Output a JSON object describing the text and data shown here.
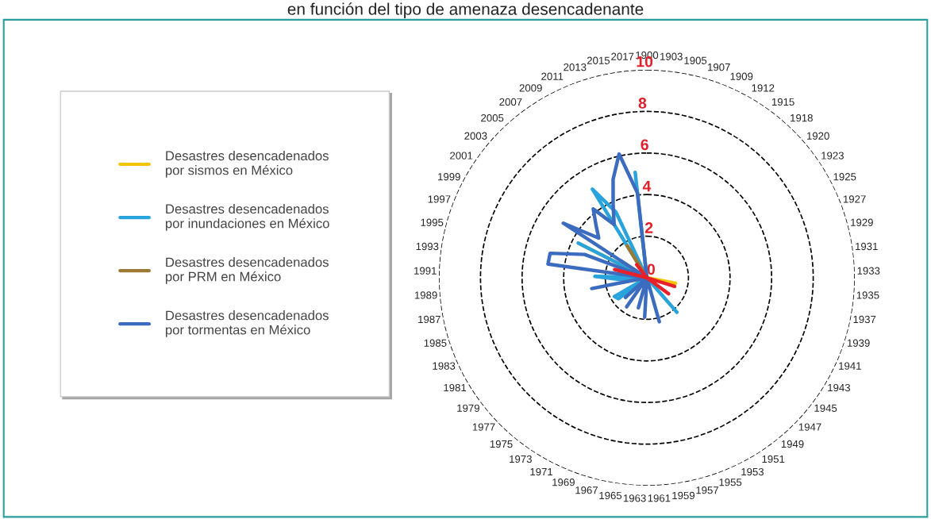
{
  "chart_data": {
    "type": "radar",
    "title": "en función del tipo de amenaza desencadenante",
    "categories": [
      "1900",
      "1903",
      "1905",
      "1907",
      "1909",
      "1912",
      "1915",
      "1918",
      "1920",
      "1923",
      "1925",
      "1927",
      "1929",
      "1931",
      "1933",
      "1935",
      "1937",
      "1939",
      "1941",
      "1943",
      "1945",
      "1947",
      "1949",
      "1951",
      "1953",
      "1955",
      "1957",
      "1959",
      "1961",
      "1963",
      "1965",
      "1967",
      "1969",
      "1971",
      "1973",
      "1975",
      "1977",
      "1979",
      "1981",
      "1983",
      "1985",
      "1987",
      "1989",
      "1991",
      "1993",
      "1995",
      "1997",
      "1999",
      "2001",
      "2003",
      "2005",
      "2007",
      "2009",
      "2011",
      "2013",
      "2015",
      "2017"
    ],
    "series": [
      {
        "name": "Desastres desencadenados\npor sismos en México",
        "color": "#f2c500",
        "values": [
          0,
          0,
          0,
          0,
          0,
          0,
          0,
          0,
          0,
          0,
          0,
          0,
          0,
          0,
          0,
          0,
          1.4,
          0,
          0,
          0,
          0,
          0,
          0,
          0,
          0,
          0,
          0,
          0,
          0,
          0,
          0,
          0,
          0,
          0,
          0,
          0,
          0,
          0,
          0,
          0,
          0,
          0,
          0,
          0,
          0,
          0,
          0,
          3.6,
          0,
          0,
          0,
          0,
          0,
          0,
          0,
          0,
          2.0
        ]
      },
      {
        "name": "Desastres desencadenados\npor inundaciones en México",
        "color": "#29a3dc",
        "values": [
          0,
          0,
          0,
          0,
          0,
          0,
          0,
          0,
          0,
          0,
          0,
          0,
          0,
          0,
          0,
          0,
          0,
          0,
          0,
          0,
          0,
          0,
          2.2,
          0,
          0,
          0,
          0,
          0,
          0,
          0,
          0,
          0,
          0,
          0,
          0,
          0,
          0,
          1.7,
          1.8,
          0,
          0,
          0,
          1.2,
          2.5,
          0,
          0,
          0,
          3.7,
          0,
          0,
          0,
          0,
          5.0,
          3.5,
          0,
          0,
          5.1
        ]
      },
      {
        "name": "Desastres desencadenados\npor PRM en México",
        "color": "#9c7a34",
        "values": [
          0,
          0,
          0,
          0,
          0,
          0,
          0,
          0,
          0,
          0,
          0,
          0,
          0,
          0,
          0,
          0,
          0,
          0,
          0,
          0,
          0,
          0,
          0,
          0,
          0,
          0,
          0,
          0,
          0,
          0,
          0,
          0,
          0,
          0,
          0,
          0,
          0,
          0,
          0,
          0,
          0,
          0,
          0,
          0,
          0,
          0,
          0,
          0,
          1.5,
          0,
          0,
          0,
          1.8,
          0,
          0,
          0,
          0
        ]
      },
      {
        "name": "Desastres desencadenados\npor tormentas en México",
        "color": "#3b6cbf",
        "values": [
          0,
          0,
          0,
          0,
          0,
          0,
          0,
          0,
          0,
          0,
          0,
          0,
          0,
          0,
          0,
          0,
          0,
          0,
          0,
          0,
          0,
          0,
          0,
          0,
          0,
          0,
          2.2,
          0,
          0,
          1.9,
          0,
          1.5,
          0,
          0,
          1.7,
          0,
          1.4,
          0,
          0,
          0,
          0,
          2.7,
          0,
          0,
          4.8,
          4.8,
          3.2,
          0,
          4.8,
          3.0,
          3.5,
          4.2,
          3.0,
          3.8,
          5.0,
          6.1,
          4.1
        ]
      },
      {
        "color": "#e8202a",
        "values": [
          0,
          0,
          0,
          0,
          0,
          0,
          0,
          0,
          0,
          0,
          0,
          0,
          0,
          0,
          0,
          0,
          0,
          1.4,
          0,
          0,
          1.3,
          0,
          0,
          0,
          0,
          0,
          0,
          0,
          0,
          0,
          0,
          0,
          0,
          0,
          0,
          0,
          0,
          0,
          0,
          0,
          0,
          0,
          0,
          0,
          0,
          1.6,
          0,
          0,
          0,
          0,
          0,
          0.8,
          0,
          0,
          0,
          0,
          0
        ]
      }
    ],
    "ylim": [
      0,
      10
    ],
    "yticks": [
      0,
      2,
      4,
      6,
      8,
      10
    ],
    "legend": "left",
    "grid": "y",
    "line_style": "solid",
    "marker": "none"
  }
}
